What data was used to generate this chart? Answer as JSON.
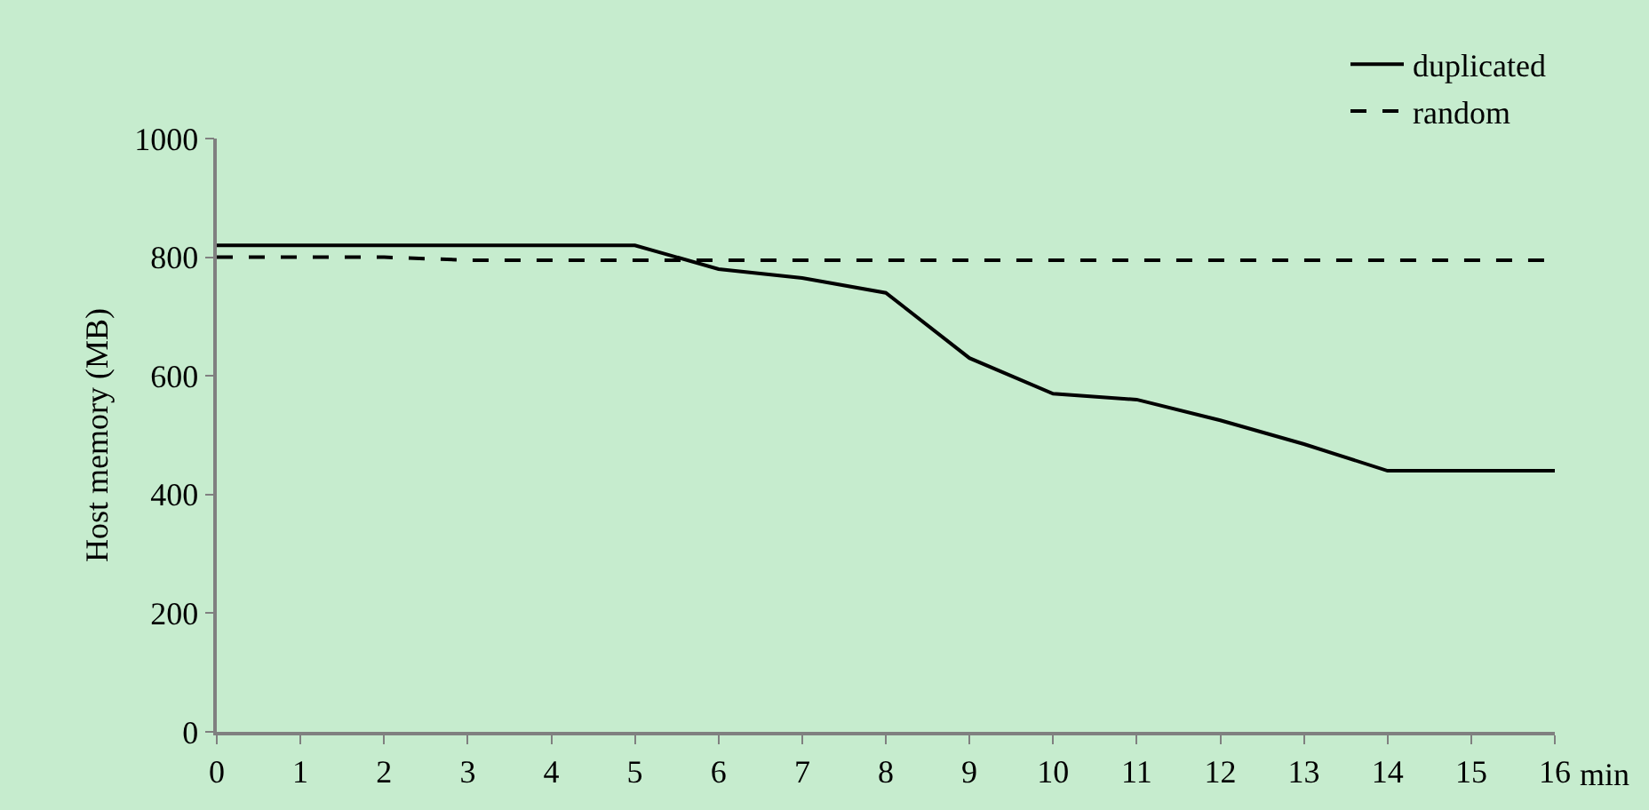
{
  "chart_data": {
    "type": "line",
    "xlabel": "min",
    "ylabel": "Host memory (MB)",
    "x": [
      0,
      1,
      2,
      3,
      4,
      5,
      6,
      7,
      8,
      9,
      10,
      11,
      12,
      13,
      14,
      15,
      16
    ],
    "series": [
      {
        "name": "duplicated",
        "color": "#000000",
        "line_style": "solid",
        "values": [
          820,
          820,
          820,
          820,
          820,
          820,
          780,
          765,
          740,
          630,
          570,
          560,
          525,
          485,
          440,
          440,
          440
        ]
      },
      {
        "name": "random",
        "color": "#000000",
        "line_style": "dashed",
        "values": [
          800,
          800,
          800,
          795,
          795,
          795,
          795,
          795,
          795,
          795,
          795,
          795,
          795,
          795,
          795,
          795,
          795
        ]
      }
    ],
    "xlim": [
      0,
      16
    ],
    "xticks": [
      0,
      1,
      2,
      3,
      4,
      5,
      6,
      7,
      8,
      9,
      10,
      11,
      12,
      13,
      14,
      15,
      16
    ],
    "ylim": [
      0,
      1000
    ],
    "yticks": [
      0,
      200,
      400,
      600,
      800,
      1000
    ],
    "grid": false,
    "legend": "top right",
    "marker": "none"
  }
}
